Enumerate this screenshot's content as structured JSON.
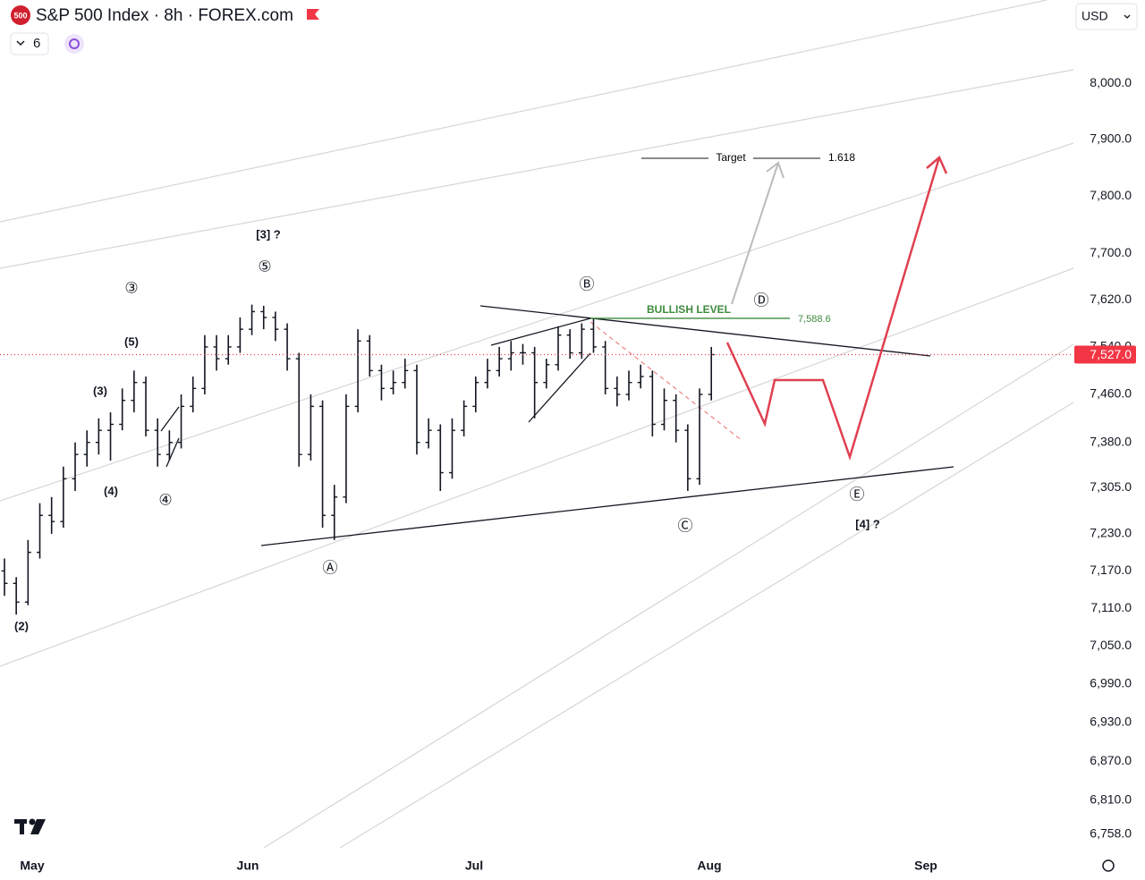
{
  "header": {
    "badge": "500",
    "title": "S&P 500 Index · 8h · FOREX.com",
    "interval_count": "6",
    "currency": "USD"
  },
  "chart_data": {
    "type": "ohlc",
    "categories": [
      "May",
      "Jun",
      "Jul",
      "Aug",
      "Sep"
    ],
    "ohlc": [
      [
        7170,
        7190,
        7130,
        7150
      ],
      [
        7150,
        7160,
        7100,
        7120
      ],
      [
        7120,
        7220,
        7115,
        7200
      ],
      [
        7200,
        7280,
        7190,
        7260
      ],
      [
        7260,
        7290,
        7230,
        7250
      ],
      [
        7250,
        7340,
        7240,
        7320
      ],
      [
        7320,
        7380,
        7300,
        7360
      ],
      [
        7360,
        7400,
        7340,
        7380
      ],
      [
        7380,
        7420,
        7360,
        7400
      ],
      [
        7400,
        7430,
        7350,
        7410
      ],
      [
        7410,
        7470,
        7400,
        7450
      ],
      [
        7450,
        7500,
        7430,
        7480
      ],
      [
        7480,
        7490,
        7390,
        7400
      ],
      [
        7400,
        7420,
        7340,
        7360
      ],
      [
        7360,
        7400,
        7350,
        7380
      ],
      [
        7380,
        7460,
        7370,
        7440
      ],
      [
        7440,
        7490,
        7430,
        7470
      ],
      [
        7470,
        7560,
        7460,
        7540
      ],
      [
        7540,
        7560,
        7500,
        7520
      ],
      [
        7520,
        7560,
        7510,
        7540
      ],
      [
        7540,
        7590,
        7530,
        7570
      ],
      [
        7570,
        7612,
        7560,
        7600
      ],
      [
        7600,
        7610,
        7570,
        7590
      ],
      [
        7590,
        7600,
        7550,
        7570
      ],
      [
        7570,
        7580,
        7500,
        7520
      ],
      [
        7520,
        7530,
        7340,
        7360
      ],
      [
        7360,
        7460,
        7350,
        7440
      ],
      [
        7440,
        7450,
        7240,
        7260
      ],
      [
        7260,
        7310,
        7220,
        7290
      ],
      [
        7290,
        7460,
        7280,
        7440
      ],
      [
        7440,
        7570,
        7430,
        7550
      ],
      [
        7550,
        7560,
        7490,
        7500
      ],
      [
        7500,
        7510,
        7450,
        7470
      ],
      [
        7470,
        7500,
        7460,
        7480
      ],
      [
        7480,
        7520,
        7470,
        7500
      ],
      [
        7500,
        7510,
        7360,
        7380
      ],
      [
        7380,
        7420,
        7370,
        7400
      ],
      [
        7400,
        7410,
        7300,
        7330
      ],
      [
        7330,
        7420,
        7320,
        7400
      ],
      [
        7400,
        7450,
        7390,
        7440
      ],
      [
        7440,
        7490,
        7430,
        7480
      ],
      [
        7480,
        7520,
        7470,
        7500
      ],
      [
        7500,
        7540,
        7490,
        7520
      ],
      [
        7520,
        7550,
        7500,
        7530
      ],
      [
        7530,
        7545,
        7510,
        7530
      ],
      [
        7530,
        7540,
        7420,
        7480
      ],
      [
        7480,
        7520,
        7470,
        7510
      ],
      [
        7510,
        7575,
        7500,
        7560
      ],
      [
        7560,
        7570,
        7520,
        7530
      ],
      [
        7530,
        7580,
        7520,
        7570
      ],
      [
        7570,
        7589,
        7530,
        7540
      ],
      [
        7540,
        7550,
        7460,
        7470
      ],
      [
        7470,
        7490,
        7440,
        7460
      ],
      [
        7460,
        7500,
        7450,
        7480
      ],
      [
        7480,
        7510,
        7470,
        7490
      ],
      [
        7490,
        7500,
        7390,
        7410
      ],
      [
        7410,
        7470,
        7400,
        7450
      ],
      [
        7450,
        7460,
        7380,
        7400
      ],
      [
        7400,
        7410,
        7300,
        7320
      ],
      [
        7320,
        7470,
        7310,
        7460
      ],
      [
        7460,
        7540,
        7450,
        7527
      ]
    ],
    "color": "#131722",
    "ylim": [
      6735,
      8151
    ],
    "log_scale": true,
    "yticks": [
      {
        "value": 8000,
        "label": "8,000.0"
      },
      {
        "value": 7900,
        "label": "7,900.0"
      },
      {
        "value": 7800,
        "label": "7,800.0"
      },
      {
        "value": 7700,
        "label": "7,700.0"
      },
      {
        "value": 7620,
        "label": "7,620.0"
      },
      {
        "value": 7540,
        "label": "7,540.0"
      },
      {
        "value": 7460,
        "label": "7,460.0"
      },
      {
        "value": 7380,
        "label": "7,380.0"
      },
      {
        "value": 7305,
        "label": "7,305.0"
      },
      {
        "value": 7230,
        "label": "7,230.0"
      },
      {
        "value": 7170,
        "label": "7,170.0"
      },
      {
        "value": 7110,
        "label": "7,110.0"
      },
      {
        "value": 7050,
        "label": "7,050.0"
      },
      {
        "value": 6990,
        "label": "6,990.0"
      },
      {
        "value": 6930,
        "label": "6,930.0"
      },
      {
        "value": 6870,
        "label": "6,870.0"
      },
      {
        "value": 6810,
        "label": "6,810.0"
      },
      {
        "value": 6758,
        "label": "6,758.0"
      }
    ],
    "last_price": {
      "value": 7527,
      "label": "7,527.0",
      "color": "#f23645"
    },
    "bullish_level": {
      "text": "BULLISH LEVEL",
      "value": 7588.6,
      "label": "7,588.6",
      "color": "#3d8b3d"
    },
    "target": {
      "text": "Target",
      "ratio": 1.618
    },
    "annotations": [
      "[3] ?",
      "⑤",
      "③",
      "(5)",
      "(3)",
      "(4)",
      "④",
      "(2)",
      "Ⓐ",
      "Ⓑ",
      "Ⓒ",
      "Ⓓ",
      "Ⓔ",
      "[4] ?"
    ]
  }
}
